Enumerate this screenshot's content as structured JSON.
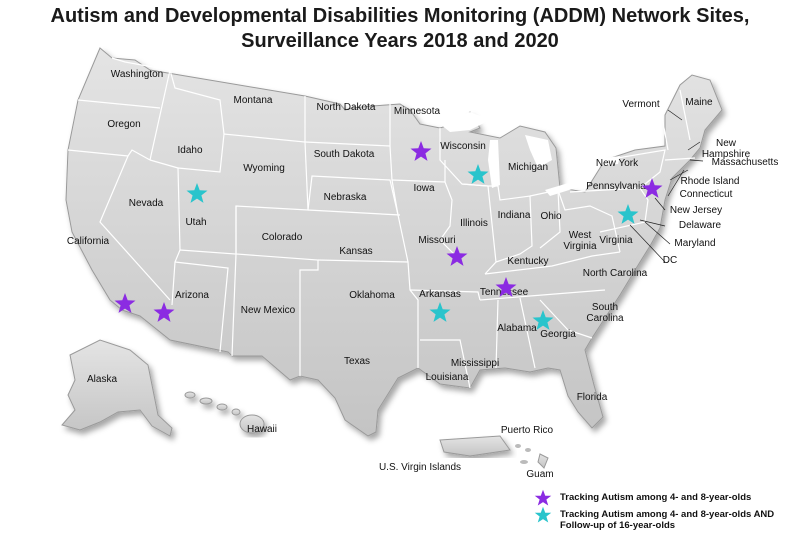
{
  "title_line1": "Autism and Developmental Disabilities Monitoring (ADDM) Network Sites,",
  "title_line2": "Surveillance Years 2018 and 2020",
  "colors": {
    "purple_star": "#8b2be2",
    "cyan_star": "#29c4cc",
    "land": "#d6d6d6",
    "border": "#ffffff"
  },
  "states": [
    "Washington",
    "Oregon",
    "California",
    "Nevada",
    "Idaho",
    "Montana",
    "Wyoming",
    "Utah",
    "Colorado",
    "Arizona",
    "New Mexico",
    "North Dakota",
    "South Dakota",
    "Nebraska",
    "Kansas",
    "Oklahoma",
    "Texas",
    "Minnesota",
    "Iowa",
    "Missouri",
    "Arkansas",
    "Louisiana",
    "Wisconsin",
    "Illinois",
    "Michigan",
    "Indiana",
    "Ohio",
    "Kentucky",
    "Tennessee",
    "Mississippi",
    "Alabama",
    "Georgia",
    "Florida",
    "South Carolina",
    "North Carolina",
    "Virginia",
    "West Virginia",
    "Pennsylvania",
    "New York",
    "Vermont",
    "Maine",
    "New Hampshire",
    "Massachusetts",
    "Rhode Island",
    "Connecticut",
    "New Jersey",
    "Delaware",
    "Maryland",
    "DC",
    "Alaska",
    "Hawaii",
    "Puerto Rico",
    "U.S. Virgin Islands",
    "Guam"
  ],
  "sites": {
    "purple": [
      "Minnesota",
      "Missouri",
      "Tennessee",
      "California",
      "Arizona",
      "New Jersey"
    ],
    "cyan": [
      "Utah",
      "Wisconsin",
      "Arkansas",
      "Georgia",
      "Maryland"
    ]
  },
  "legend": {
    "purple": "Tracking Autism among 4- and 8-year-olds",
    "cyan_line1": "Tracking Autism among 4- and 8-year-olds AND",
    "cyan_line2": "Follow-up of 16-year-olds"
  }
}
